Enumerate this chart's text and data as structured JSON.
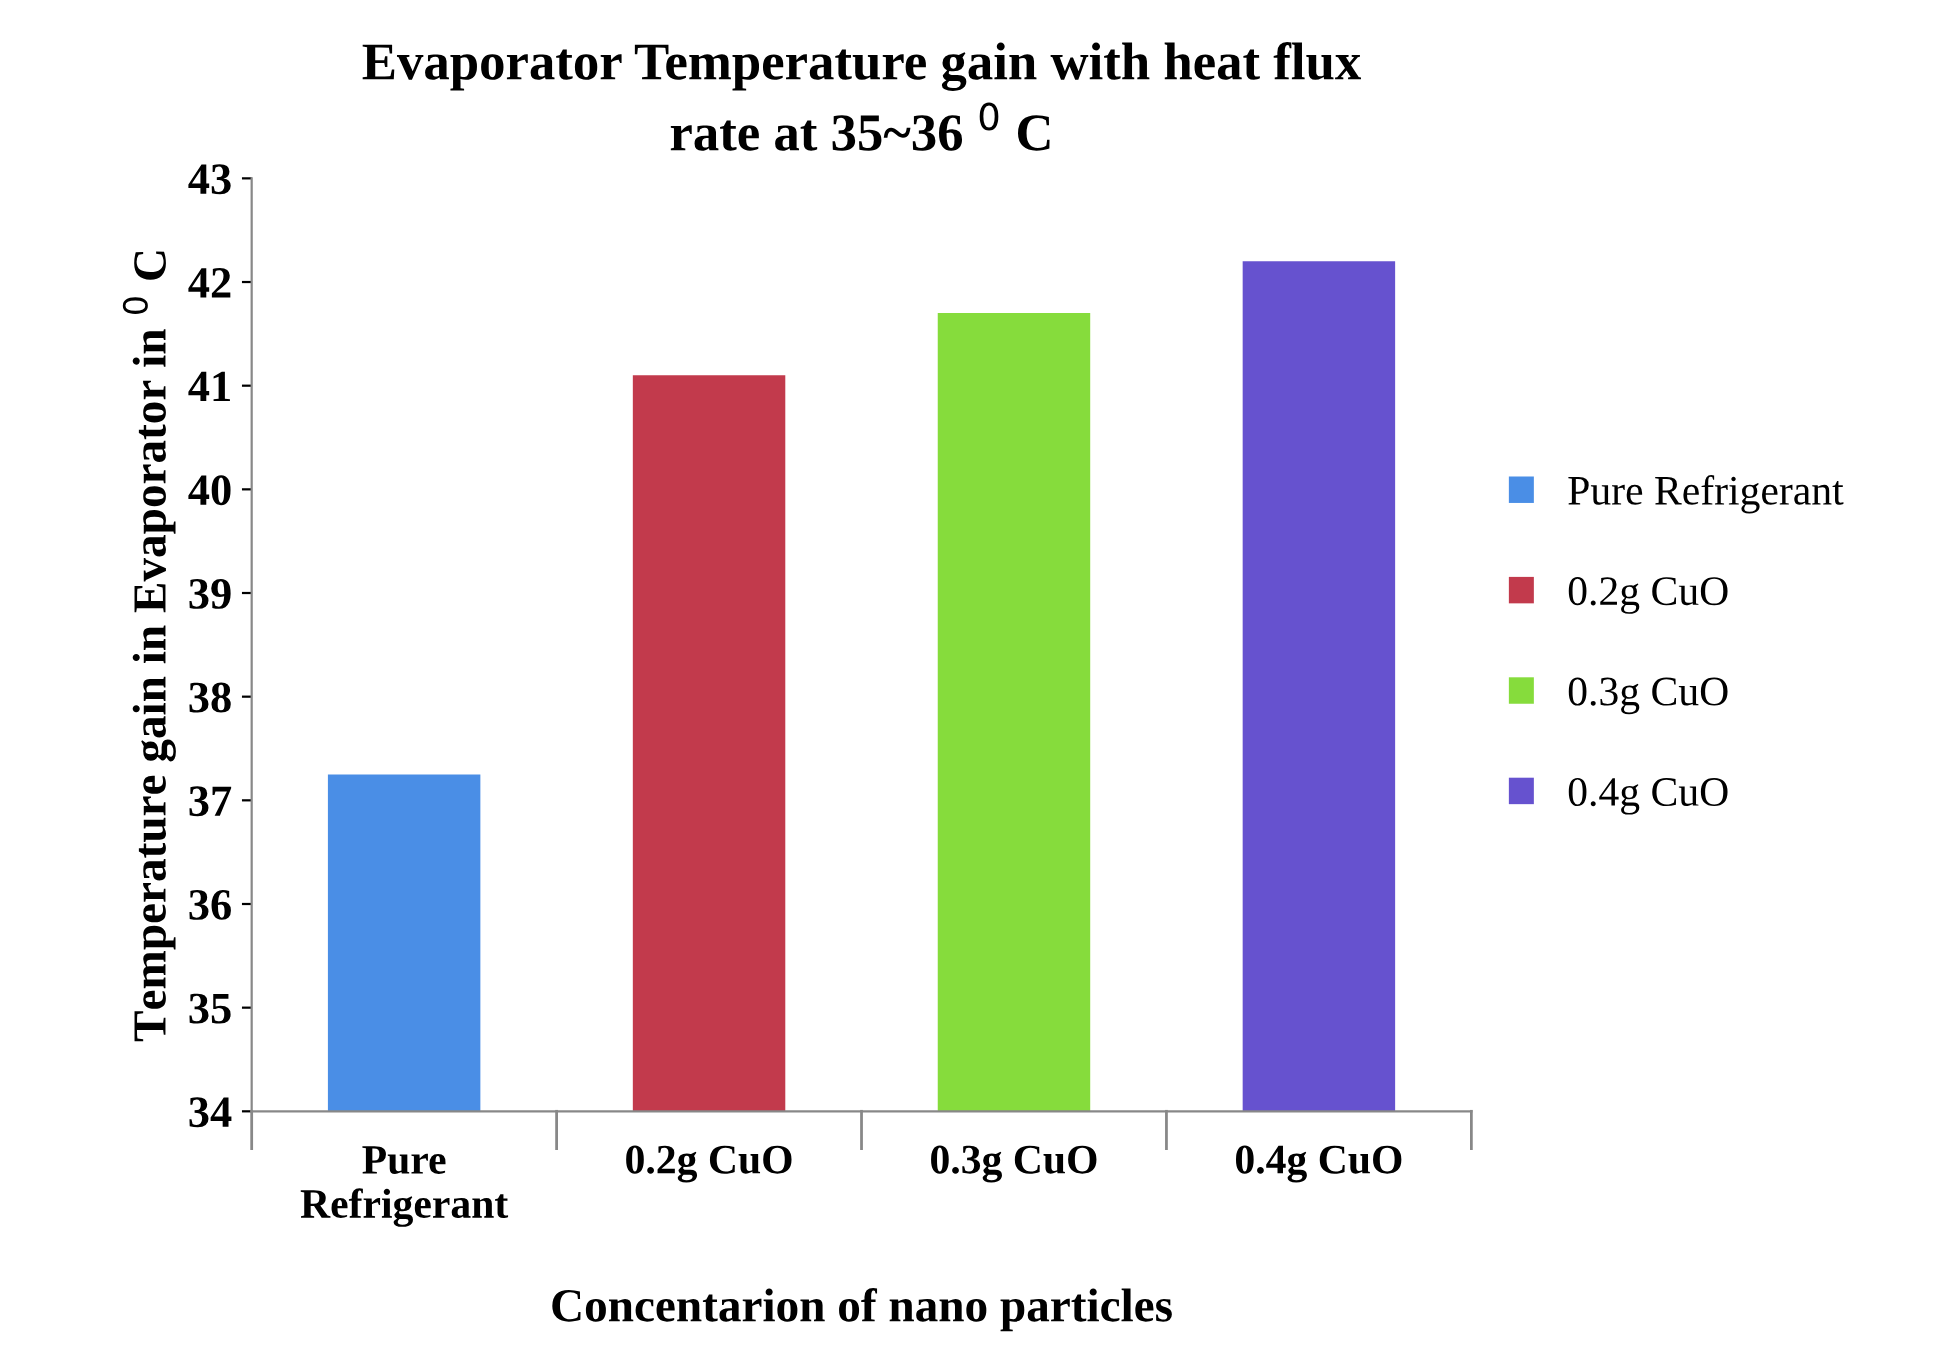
{
  "chart_data": {
    "type": "bar",
    "title": "Evaporator Temperature gain with heat flux rate at 35~36 $^{0}$ C",
    "xlabel": "Concentarion of nano particles",
    "ylabel": "Temperature gain in Evaporator in $^{0}$ C",
    "categories": [
      "Pure Refrigerant",
      "0.2g CuO",
      "0.3g CuO",
      "0.4g CuO"
    ],
    "series": [
      {
        "name": "Pure Refrigerant",
        "color": "#4a8ee6",
        "values": [
          37.25,
          null,
          null,
          null
        ]
      },
      {
        "name": "0.2g CuO",
        "color": "#c23a4c",
        "values": [
          null,
          41.1,
          null,
          null
        ]
      },
      {
        "name": "0.3g CuO",
        "color": "#86dc3c",
        "values": [
          null,
          null,
          41.7,
          null
        ]
      },
      {
        "name": "0.4g CuO",
        "color": "#6652cf",
        "values": [
          null,
          null,
          null,
          42.2
        ]
      }
    ],
    "ylim": [
      34,
      43
    ],
    "yticks": [
      34,
      35,
      36,
      37,
      38,
      39,
      40,
      41,
      42,
      43
    ],
    "legend": "right",
    "grid": false
  }
}
